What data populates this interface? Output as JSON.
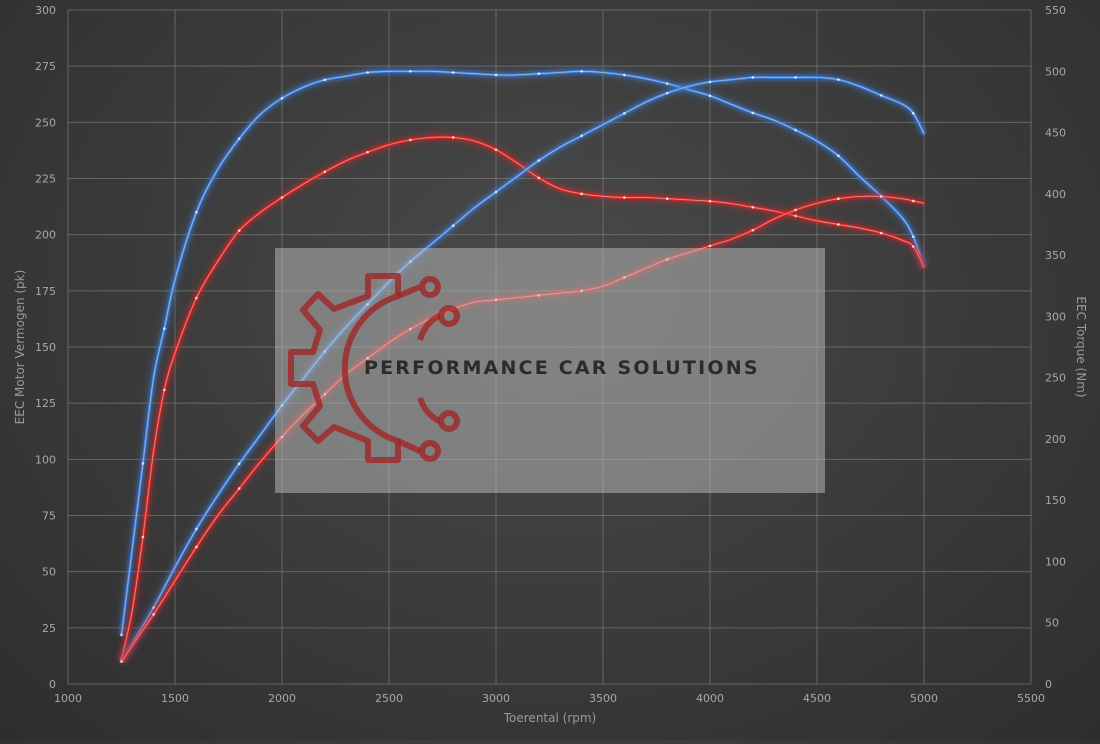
{
  "chart_data": {
    "type": "line",
    "xlabel": "Toerental (rpm)",
    "ylabel_left": "EEC Motor Vermogen (pk)",
    "ylabel_right": "EEC Torque (Nm)",
    "xlim": [
      1000,
      5500
    ],
    "ylim_left": [
      0,
      300
    ],
    "ylim_right": [
      0,
      550
    ],
    "x_ticks": [
      1000,
      1500,
      2000,
      2500,
      3000,
      3500,
      4000,
      4500,
      5000,
      5500
    ],
    "y_left_ticks": [
      0,
      25,
      50,
      75,
      100,
      125,
      150,
      175,
      200,
      225,
      250,
      275,
      300
    ],
    "y_right_ticks": [
      0,
      50,
      100,
      150,
      200,
      250,
      300,
      350,
      400,
      450,
      500,
      550
    ],
    "grid": true,
    "series": [
      {
        "color": "#3f82e0",
        "axis": "right",
        "points": [
          [
            1250,
            40
          ],
          [
            1300,
            110
          ],
          [
            1350,
            180
          ],
          [
            1400,
            250
          ],
          [
            1450,
            290
          ],
          [
            1500,
            330
          ],
          [
            1600,
            385
          ],
          [
            1700,
            420
          ],
          [
            1800,
            445
          ],
          [
            1900,
            465
          ],
          [
            2000,
            478
          ],
          [
            2100,
            487
          ],
          [
            2200,
            493
          ],
          [
            2300,
            496
          ],
          [
            2400,
            499
          ],
          [
            2500,
            500
          ],
          [
            2600,
            500
          ],
          [
            2700,
            500
          ],
          [
            2800,
            499
          ],
          [
            2900,
            498
          ],
          [
            3000,
            497
          ],
          [
            3100,
            497
          ],
          [
            3200,
            498
          ],
          [
            3300,
            499
          ],
          [
            3400,
            500
          ],
          [
            3500,
            499
          ],
          [
            3600,
            497
          ],
          [
            3700,
            494
          ],
          [
            3800,
            490
          ],
          [
            3900,
            485
          ],
          [
            4000,
            480
          ],
          [
            4100,
            473
          ],
          [
            4200,
            466
          ],
          [
            4300,
            460
          ],
          [
            4400,
            452
          ],
          [
            4500,
            443
          ],
          [
            4600,
            431
          ],
          [
            4700,
            414
          ],
          [
            4800,
            398
          ],
          [
            4900,
            380
          ],
          [
            4950,
            365
          ],
          [
            5000,
            340
          ]
        ]
      },
      {
        "color": "#e02828",
        "axis": "right",
        "points": [
          [
            1250,
            20
          ],
          [
            1300,
            60
          ],
          [
            1350,
            120
          ],
          [
            1400,
            190
          ],
          [
            1450,
            240
          ],
          [
            1500,
            270
          ],
          [
            1600,
            315
          ],
          [
            1700,
            345
          ],
          [
            1800,
            370
          ],
          [
            1900,
            385
          ],
          [
            2000,
            397
          ],
          [
            2100,
            408
          ],
          [
            2200,
            418
          ],
          [
            2300,
            427
          ],
          [
            2400,
            434
          ],
          [
            2500,
            440
          ],
          [
            2600,
            444
          ],
          [
            2700,
            446
          ],
          [
            2800,
            446
          ],
          [
            2900,
            443
          ],
          [
            3000,
            436
          ],
          [
            3100,
            425
          ],
          [
            3200,
            413
          ],
          [
            3300,
            404
          ],
          [
            3400,
            400
          ],
          [
            3500,
            398
          ],
          [
            3600,
            397
          ],
          [
            3700,
            397
          ],
          [
            3800,
            396
          ],
          [
            3900,
            395
          ],
          [
            4000,
            394
          ],
          [
            4100,
            392
          ],
          [
            4200,
            389
          ],
          [
            4300,
            386
          ],
          [
            4400,
            382
          ],
          [
            4500,
            378
          ],
          [
            4600,
            375
          ],
          [
            4700,
            372
          ],
          [
            4800,
            368
          ],
          [
            4900,
            362
          ],
          [
            4950,
            357
          ],
          [
            5000,
            340
          ]
        ]
      },
      {
        "color": "#3f82e0",
        "axis": "left",
        "points": [
          [
            1250,
            10
          ],
          [
            1300,
            18
          ],
          [
            1400,
            34
          ],
          [
            1500,
            52
          ],
          [
            1600,
            69
          ],
          [
            1700,
            84
          ],
          [
            1800,
            98
          ],
          [
            1900,
            111
          ],
          [
            2000,
            124
          ],
          [
            2100,
            136
          ],
          [
            2200,
            148
          ],
          [
            2300,
            159
          ],
          [
            2400,
            169
          ],
          [
            2500,
            179
          ],
          [
            2600,
            188
          ],
          [
            2700,
            196
          ],
          [
            2800,
            204
          ],
          [
            2900,
            212
          ],
          [
            3000,
            219
          ],
          [
            3100,
            226
          ],
          [
            3200,
            233
          ],
          [
            3300,
            239
          ],
          [
            3400,
            244
          ],
          [
            3500,
            249
          ],
          [
            3600,
            254
          ],
          [
            3700,
            259
          ],
          [
            3800,
            263
          ],
          [
            3900,
            266
          ],
          [
            4000,
            268
          ],
          [
            4100,
            269
          ],
          [
            4200,
            270
          ],
          [
            4300,
            270
          ],
          [
            4400,
            270
          ],
          [
            4500,
            270
          ],
          [
            4600,
            269
          ],
          [
            4700,
            266
          ],
          [
            4800,
            262
          ],
          [
            4900,
            258
          ],
          [
            4950,
            254
          ],
          [
            5000,
            245
          ]
        ]
      },
      {
        "color": "#e02828",
        "axis": "left",
        "points": [
          [
            1250,
            10
          ],
          [
            1300,
            17
          ],
          [
            1400,
            31
          ],
          [
            1500,
            46
          ],
          [
            1600,
            61
          ],
          [
            1700,
            75
          ],
          [
            1800,
            87
          ],
          [
            1900,
            99
          ],
          [
            2000,
            110
          ],
          [
            2100,
            120
          ],
          [
            2200,
            129
          ],
          [
            2300,
            138
          ],
          [
            2400,
            145
          ],
          [
            2500,
            152
          ],
          [
            2600,
            158
          ],
          [
            2700,
            163
          ],
          [
            2800,
            167
          ],
          [
            2900,
            170
          ],
          [
            3000,
            171
          ],
          [
            3100,
            172
          ],
          [
            3200,
            173
          ],
          [
            3300,
            174
          ],
          [
            3400,
            175
          ],
          [
            3500,
            177
          ],
          [
            3600,
            181
          ],
          [
            3700,
            185
          ],
          [
            3800,
            189
          ],
          [
            3900,
            192
          ],
          [
            4000,
            195
          ],
          [
            4100,
            198
          ],
          [
            4200,
            202
          ],
          [
            4300,
            207
          ],
          [
            4400,
            211
          ],
          [
            4500,
            214
          ],
          [
            4600,
            216
          ],
          [
            4700,
            217
          ],
          [
            4800,
            217
          ],
          [
            4900,
            216
          ],
          [
            4950,
            215
          ],
          [
            5000,
            214
          ]
        ]
      }
    ]
  },
  "watermark": {
    "brand_text": "PERFORMANCE CAR SOLUTIONS",
    "logo_icon": "gear-circuit-icon",
    "logo_color": "#a02424"
  }
}
